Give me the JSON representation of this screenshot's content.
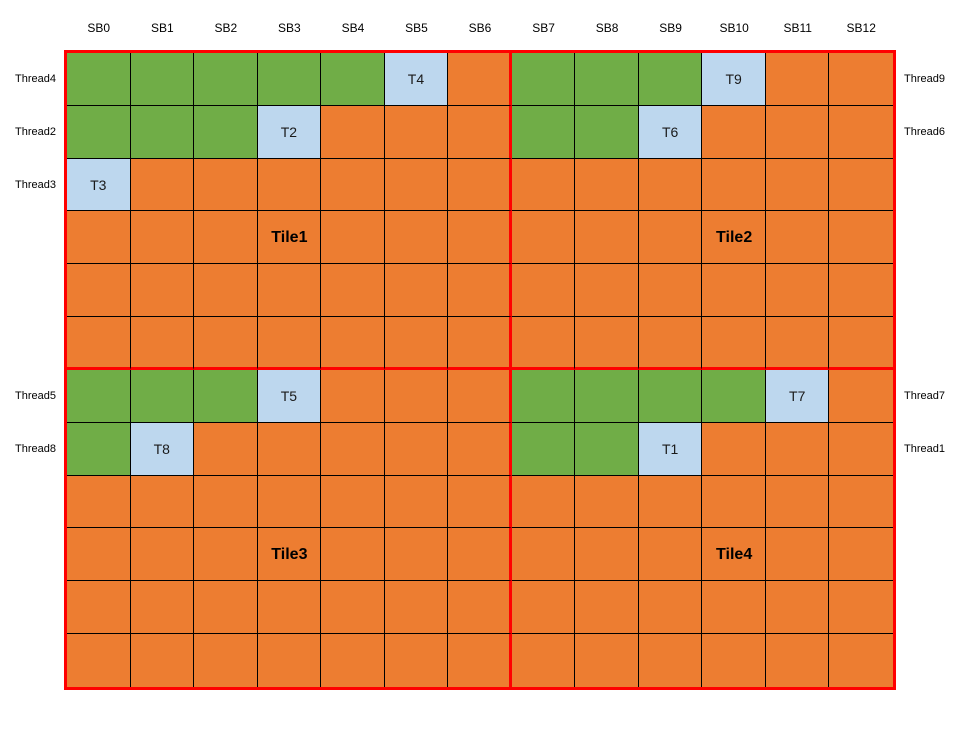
{
  "title": "tile-thread-scheduling-diagram",
  "colors": {
    "green": "#70AD47",
    "orange": "#ED7D31",
    "blue": "#BDD7EE",
    "red_border": "#FF0000",
    "grid_line": "#000000",
    "text": "#000000"
  },
  "column_headers": [
    "SB0",
    "SB1",
    "SB2",
    "SB3",
    "SB4",
    "SB5",
    "SB6",
    "SB7",
    "SB8",
    "SB9",
    "SB10",
    "SB11",
    "SB12"
  ],
  "left_thread_labels": [
    {
      "row": 0,
      "text": "Thread4"
    },
    {
      "row": 1,
      "text": "Thread2"
    },
    {
      "row": 2,
      "text": "Thread3"
    },
    {
      "row": 6,
      "text": "Thread5"
    },
    {
      "row": 7,
      "text": "Thread8"
    }
  ],
  "right_thread_labels": [
    {
      "row": 0,
      "text": "Thread9"
    },
    {
      "row": 1,
      "text": "Thread6"
    },
    {
      "row": 6,
      "text": "Thread7"
    },
    {
      "row": 7,
      "text": "Thread1"
    }
  ],
  "grid": {
    "rows": 12,
    "cols": 13,
    "red_divider_after_col": 6,
    "red_divider_after_row": 5,
    "cell_colors": [
      [
        "g",
        "g",
        "g",
        "g",
        "g",
        "b",
        "o",
        "g",
        "g",
        "g",
        "b",
        "o",
        "o"
      ],
      [
        "g",
        "g",
        "g",
        "b",
        "o",
        "o",
        "o",
        "g",
        "g",
        "b",
        "o",
        "o",
        "o"
      ],
      [
        "b",
        "o",
        "o",
        "o",
        "o",
        "o",
        "o",
        "o",
        "o",
        "o",
        "o",
        "o",
        "o"
      ],
      [
        "o",
        "o",
        "o",
        "o",
        "o",
        "o",
        "o",
        "o",
        "o",
        "o",
        "o",
        "o",
        "o"
      ],
      [
        "o",
        "o",
        "o",
        "o",
        "o",
        "o",
        "o",
        "o",
        "o",
        "o",
        "o",
        "o",
        "o"
      ],
      [
        "o",
        "o",
        "o",
        "o",
        "o",
        "o",
        "o",
        "o",
        "o",
        "o",
        "o",
        "o",
        "o"
      ],
      [
        "g",
        "g",
        "g",
        "b",
        "o",
        "o",
        "o",
        "g",
        "g",
        "g",
        "g",
        "b",
        "o"
      ],
      [
        "g",
        "b",
        "o",
        "o",
        "o",
        "o",
        "o",
        "g",
        "g",
        "b",
        "o",
        "o",
        "o"
      ],
      [
        "o",
        "o",
        "o",
        "o",
        "o",
        "o",
        "o",
        "o",
        "o",
        "o",
        "o",
        "o",
        "o"
      ],
      [
        "o",
        "o",
        "o",
        "o",
        "o",
        "o",
        "o",
        "o",
        "o",
        "o",
        "o",
        "o",
        "o"
      ],
      [
        "o",
        "o",
        "o",
        "o",
        "o",
        "o",
        "o",
        "o",
        "o",
        "o",
        "o",
        "o",
        "o"
      ],
      [
        "o",
        "o",
        "o",
        "o",
        "o",
        "o",
        "o",
        "o",
        "o",
        "o",
        "o",
        "o",
        "o"
      ]
    ]
  },
  "t_markers": [
    {
      "row": 0,
      "col": 5,
      "label": "T4"
    },
    {
      "row": 0,
      "col": 10,
      "label": "T9"
    },
    {
      "row": 1,
      "col": 3,
      "label": "T2"
    },
    {
      "row": 1,
      "col": 9,
      "label": "T6"
    },
    {
      "row": 2,
      "col": 0,
      "label": "T3"
    },
    {
      "row": 6,
      "col": 3,
      "label": "T5"
    },
    {
      "row": 6,
      "col": 11,
      "label": "T7"
    },
    {
      "row": 7,
      "col": 1,
      "label": "T8"
    },
    {
      "row": 7,
      "col": 9,
      "label": "T1"
    }
  ],
  "tile_labels": [
    {
      "row": 3,
      "col": 3,
      "text": "Tile1"
    },
    {
      "row": 3,
      "col": 10,
      "text": "Tile2"
    },
    {
      "row": 9,
      "col": 3,
      "text": "Tile3"
    },
    {
      "row": 9,
      "col": 10,
      "text": "Tile4"
    }
  ]
}
